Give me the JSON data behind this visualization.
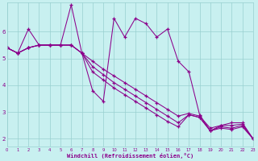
{
  "bg_color": "#c8f0f0",
  "line_color": "#8b008b",
  "grid_color": "#98d0d0",
  "text_color": "#8b008b",
  "xlim": [
    0,
    23
  ],
  "ylim": [
    1.7,
    7.1
  ],
  "xticks": [
    0,
    1,
    2,
    3,
    4,
    5,
    6,
    7,
    8,
    9,
    10,
    11,
    12,
    13,
    14,
    15,
    16,
    17,
    18,
    19,
    20,
    21,
    22,
    23
  ],
  "yticks": [
    2,
    3,
    4,
    5,
    6
  ],
  "xlabel": "Windchill (Refroidissement éolien,°C)",
  "series": [
    [
      5.4,
      5.2,
      5.4,
      5.5,
      5.5,
      5.5,
      5.5,
      5.2,
      4.9,
      4.6,
      4.35,
      4.1,
      3.85,
      3.6,
      3.35,
      3.1,
      2.85,
      2.95,
      2.85,
      2.4,
      2.5,
      2.5,
      2.55,
      2.0
    ],
    [
      5.4,
      5.2,
      5.4,
      5.5,
      5.5,
      5.5,
      5.5,
      5.2,
      4.7,
      4.4,
      4.1,
      3.85,
      3.6,
      3.35,
      3.1,
      2.85,
      2.6,
      2.9,
      2.8,
      2.3,
      2.45,
      2.4,
      2.5,
      2.0
    ],
    [
      5.4,
      5.2,
      5.4,
      5.5,
      5.5,
      5.5,
      5.5,
      5.2,
      4.5,
      4.2,
      3.9,
      3.65,
      3.4,
      3.15,
      2.9,
      2.65,
      2.45,
      2.9,
      2.8,
      2.3,
      2.4,
      2.35,
      2.45,
      2.0
    ],
    [
      5.4,
      5.2,
      6.1,
      5.5,
      5.5,
      5.5,
      7.0,
      5.2,
      3.8,
      3.4,
      6.5,
      5.8,
      6.5,
      6.3,
      5.8,
      6.1,
      4.9,
      4.5,
      2.9,
      2.3,
      2.5,
      2.6,
      2.6,
      2.0
    ]
  ]
}
